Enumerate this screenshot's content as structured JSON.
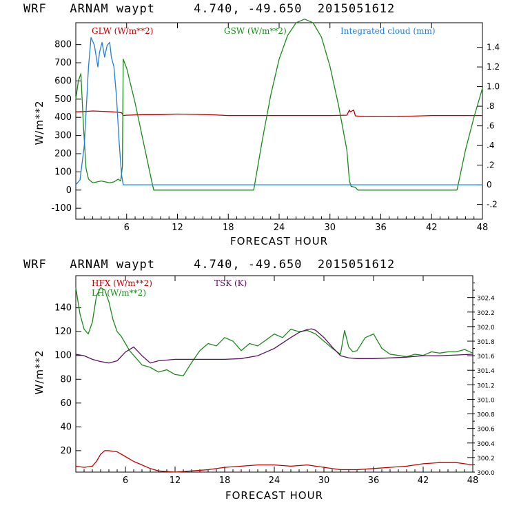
{
  "charts": [
    {
      "title": "WRF   ARNAM waypt     4.740, -49.650  2015051612",
      "xlabel": "FORECAST HOUR",
      "ylabel": "W/m**2",
      "xticks": [
        "6",
        "12",
        "18",
        "24",
        "30",
        "36",
        "42",
        "48"
      ],
      "yticks_left": [
        "-100",
        "0",
        "100",
        "200",
        "300",
        "400",
        "500",
        "600",
        "700",
        "800"
      ],
      "yticks_right": [
        "-.2",
        "0",
        ".2",
        ".4",
        ".6",
        ".8",
        "1.0",
        "1.2",
        "1.4"
      ],
      "legend": [
        {
          "label": "GLW (W/m**2)",
          "color": "#c00000"
        },
        {
          "label": "GSW (W/m**2)",
          "color": "#1a8a1a"
        },
        {
          "label": "Integrated cloud (mm)",
          "color": "#1e7fd6"
        }
      ]
    },
    {
      "title": "WRF   ARNAM waypt     4.740, -49.650  2015051612",
      "xlabel": "FORECAST HOUR",
      "ylabel": "W/m**2",
      "xticks": [
        "6",
        "12",
        "18",
        "24",
        "30",
        "36",
        "42",
        "48"
      ],
      "yticks_left": [
        "20",
        "40",
        "60",
        "80",
        "100",
        "120",
        "140"
      ],
      "yticks_right": [
        "300.0",
        "300.2",
        "300.4",
        "300.6",
        "300.8",
        "301.0",
        "301.2",
        "301.4",
        "301.6",
        "301.8",
        "302.0",
        "302.2",
        "302.4"
      ],
      "legend": [
        {
          "label": "HFX (W/m**2)",
          "color": "#c00000"
        },
        {
          "label": "LH  (W/m**2)",
          "color": "#1a8a1a"
        },
        {
          "label": "TSK (K)",
          "color": "#5a1060"
        }
      ]
    }
  ],
  "chart_data": [
    {
      "type": "line",
      "title": "WRF   ARNAM waypt     4.740, -49.650  2015051612",
      "xlabel": "FORECAST HOUR",
      "ylabel": "W/m**2",
      "xlim": [
        0,
        48
      ],
      "ylim": [
        -160,
        920
      ],
      "y2lim": [
        -0.35,
        1.65
      ],
      "series": [
        {
          "name": "GLW (W/m**2)",
          "axis": "left",
          "color": "#c00000",
          "x": [
            0,
            1,
            2,
            3,
            4,
            5,
            5.4,
            5.6,
            6,
            8,
            10,
            12,
            14,
            16,
            18,
            20,
            22,
            24,
            26,
            28,
            30,
            32,
            32.3,
            32.4,
            32.8,
            33,
            34,
            36,
            38,
            40,
            42,
            44,
            46,
            48
          ],
          "y": [
            430,
            432,
            435,
            433,
            431,
            428,
            425,
            410,
            412,
            415,
            415,
            418,
            416,
            414,
            410,
            410,
            410,
            410,
            410,
            410,
            410,
            412,
            440,
            430,
            440,
            408,
            404,
            403,
            404,
            407,
            410,
            410,
            410,
            410
          ]
        },
        {
          "name": "GSW (W/m**2)",
          "axis": "left",
          "color": "#1a8a1a",
          "x": [
            0,
            0.3,
            0.6,
            0.9,
            1.2,
            1.5,
            2,
            3,
            4,
            4.5,
            5,
            5.3,
            5.5,
            5.6,
            6,
            7,
            8,
            9,
            9.2,
            21,
            22,
            23,
            24,
            25,
            26,
            27,
            28,
            29,
            30,
            31,
            32,
            32.3,
            32.5,
            33,
            33.3,
            45,
            46,
            47,
            48
          ],
          "y": [
            500,
            600,
            640,
            350,
            120,
            60,
            40,
            50,
            40,
            45,
            60,
            50,
            130,
            720,
            670,
            480,
            260,
            40,
            0,
            0,
            270,
            520,
            720,
            850,
            920,
            940,
            920,
            840,
            680,
            470,
            220,
            50,
            20,
            15,
            0,
            0,
            220,
            400,
            560
          ]
        },
        {
          "name": "Integrated cloud (mm)",
          "axis": "right",
          "color": "#1e7fd6",
          "x": [
            0,
            0.5,
            1,
            1.5,
            1.8,
            2.2,
            2.6,
            2.8,
            3.1,
            3.4,
            3.7,
            4,
            4.2,
            4.5,
            4.8,
            5.1,
            5.4,
            5.6,
            6,
            10,
            20,
            30,
            40,
            48
          ],
          "y": [
            0,
            0.05,
            0.4,
            1.2,
            1.5,
            1.42,
            1.2,
            1.35,
            1.45,
            1.3,
            1.42,
            1.45,
            1.3,
            1.2,
            0.9,
            0.45,
            0.1,
            0,
            0,
            0,
            0,
            0,
            0,
            0
          ]
        }
      ]
    },
    {
      "type": "line",
      "title": "WRF   ARNAM waypt     4.740, -49.650  2015051612",
      "xlabel": "FORECAST HOUR",
      "ylabel": "W/m**2",
      "xlim": [
        0,
        48
      ],
      "ylim": [
        2,
        167
      ],
      "y2lim": [
        300.0,
        302.7
      ],
      "series": [
        {
          "name": "HFX (W/m**2)",
          "axis": "left",
          "color": "#c00000",
          "x": [
            0,
            1,
            2,
            2.5,
            3,
            3.5,
            4,
            5,
            6,
            7,
            8,
            9,
            10,
            12,
            14,
            16,
            18,
            20,
            22,
            24,
            26,
            28,
            30,
            32,
            34,
            36,
            38,
            40,
            42,
            44,
            46,
            47,
            48
          ],
          "y": [
            7,
            6,
            7,
            11,
            17,
            20,
            20,
            19,
            15,
            11,
            8,
            5,
            3,
            2,
            3,
            4,
            6,
            7,
            8,
            8,
            7,
            8,
            6,
            4,
            4,
            5,
            6,
            7,
            9,
            10,
            10,
            9,
            8
          ]
        },
        {
          "name": "LH  (W/m**2)",
          "axis": "left",
          "color": "#1a8a1a",
          "x": [
            0,
            0.5,
            1,
            1.5,
            2,
            2.5,
            3,
            3.5,
            4,
            4.5,
            5,
            5.5,
            6,
            6.5,
            7,
            7.5,
            8,
            9,
            10,
            11,
            12,
            13,
            14,
            15,
            16,
            17,
            18,
            19,
            20,
            21,
            22,
            23,
            24,
            25,
            26,
            27,
            28,
            29,
            30,
            31,
            32,
            32.5,
            33,
            33.5,
            34,
            35,
            36,
            37,
            38,
            39,
            40,
            41,
            42,
            43,
            44,
            45,
            46,
            47,
            48
          ],
          "y": [
            157,
            135,
            122,
            118,
            128,
            150,
            157,
            155,
            145,
            130,
            120,
            116,
            110,
            104,
            100,
            96,
            92,
            90,
            86,
            88,
            84,
            83,
            94,
            104,
            110,
            108,
            115,
            112,
            104,
            110,
            108,
            113,
            118,
            115,
            122,
            120,
            121,
            118,
            112,
            106,
            101,
            121,
            107,
            103,
            104,
            115,
            118,
            106,
            101,
            100,
            99,
            101,
            100,
            103,
            102,
            103,
            103,
            105,
            102
          ]
        },
        {
          "name": "TSK (K)",
          "axis": "right",
          "color": "#5a1060",
          "x": [
            0,
            1,
            2,
            3,
            4,
            5,
            6,
            7,
            8,
            9,
            10,
            12,
            14,
            16,
            18,
            20,
            22,
            24,
            26,
            27,
            28,
            28.5,
            29,
            30,
            31,
            32,
            33,
            34,
            36,
            38,
            40,
            42,
            44,
            46,
            48
          ],
          "y": [
            301.62,
            301.6,
            301.55,
            301.52,
            301.5,
            301.53,
            301.65,
            301.72,
            301.6,
            301.5,
            301.53,
            301.55,
            301.55,
            301.55,
            301.55,
            301.56,
            301.6,
            301.7,
            301.85,
            301.92,
            301.96,
            301.97,
            301.95,
            301.85,
            301.72,
            301.6,
            301.57,
            301.56,
            301.56,
            301.57,
            301.58,
            301.6,
            301.6,
            301.61,
            301.62
          ]
        }
      ]
    }
  ]
}
